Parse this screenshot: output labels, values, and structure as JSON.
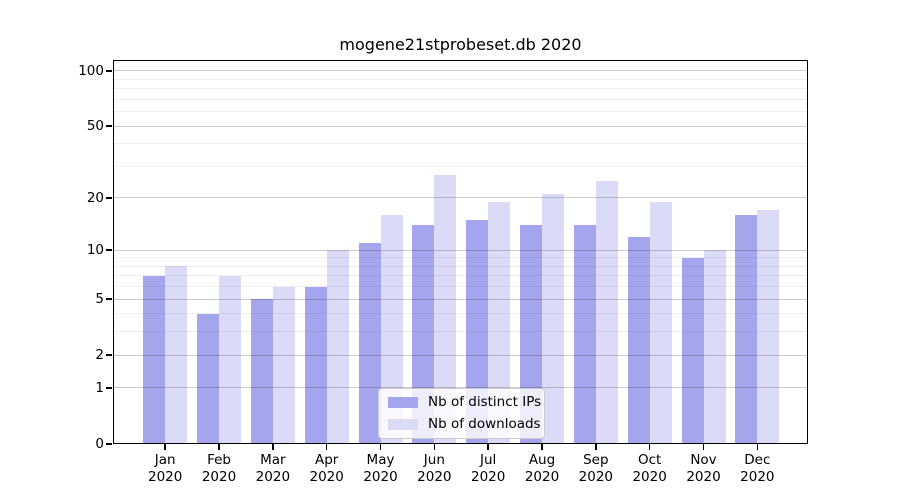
{
  "page": {
    "background": "#ffffff"
  },
  "chart_data": {
    "type": "bar",
    "title": "mogene21stprobeset.db 2020",
    "categories": [
      "Jan",
      "Feb",
      "Mar",
      "Apr",
      "May",
      "Jun",
      "Jul",
      "Aug",
      "Sep",
      "Oct",
      "Nov",
      "Dec"
    ],
    "category_year": "2020",
    "series": [
      {
        "name": "Nb of distinct IPs",
        "color": "#a5a5ee",
        "values": [
          7,
          4,
          5,
          6,
          11,
          14,
          15,
          14,
          14,
          12,
          9,
          16
        ]
      },
      {
        "name": "Nb of downloads",
        "color": "#dbdbf8",
        "values": [
          8,
          7,
          6,
          10,
          16,
          27,
          19,
          21,
          25,
          19,
          10,
          17
        ]
      }
    ],
    "xlabel": "",
    "ylabel": "",
    "y_scale": "log1p",
    "y_axis": {
      "min": 0,
      "max": 114.7,
      "ticks": [
        0,
        1,
        2,
        5,
        10,
        20,
        50,
        100
      ],
      "minor_gridlines": [
        3,
        4,
        6,
        7,
        8,
        9,
        30,
        40,
        60,
        70,
        80,
        90
      ]
    },
    "grid": {
      "on": true,
      "major_color": "rgba(0,0,0,0.20)",
      "minor_color": "rgba(0,0,0,0.065)"
    },
    "legend": {
      "position": "bottom-center",
      "entries": [
        "Nb of distinct IPs",
        "Nb of downloads"
      ]
    }
  }
}
